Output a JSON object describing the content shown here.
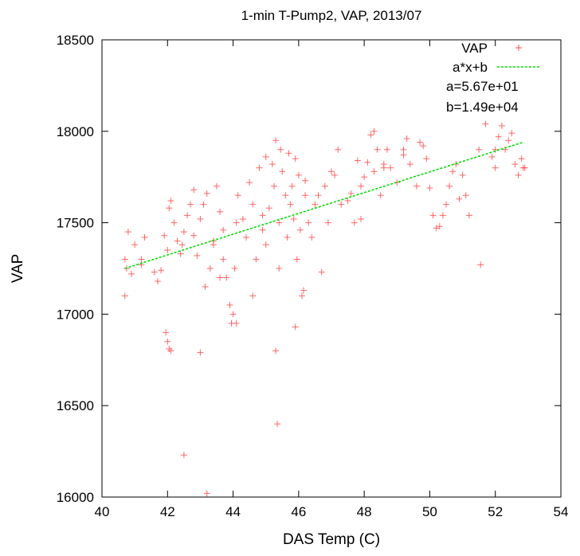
{
  "chart_data": {
    "type": "scatter",
    "title": "1-min T-Pump2, VAP, 2013/07",
    "xlabel": "DAS Temp (C)",
    "ylabel": "VAP",
    "xlim": [
      40,
      54
    ],
    "ylim": [
      16000,
      18500
    ],
    "x_ticks": [
      "40",
      "42",
      "44",
      "46",
      "48",
      "50",
      "52",
      "54"
    ],
    "y_ticks": [
      "16000",
      "16500",
      "17000",
      "17500",
      "18000",
      "18500"
    ],
    "grid": false,
    "legend_position": "top-right",
    "colors": {
      "scatter": "#ff4d4d",
      "fit": "#00dd00"
    },
    "series": [
      {
        "name": "VAP",
        "marker": "+",
        "x": [
          40.7,
          40.8,
          40.75,
          40.9,
          41.0,
          41.2,
          41.3,
          40.7,
          41.6,
          41.7,
          41.9,
          42.0,
          42.05,
          42.1,
          42.2,
          42.3,
          42.4,
          41.95,
          42.0,
          42.1,
          42.5,
          42.6,
          42.7,
          42.8,
          42.9,
          42.45,
          43.0,
          43.1,
          43.2,
          43.3,
          43.15,
          43.4,
          43.5,
          43.6,
          43.7,
          43.8,
          43.9,
          43.95,
          44.0,
          44.05,
          44.1,
          44.15,
          44.3,
          44.4,
          44.5,
          44.6,
          44.7,
          44.8,
          44.9,
          45.0,
          45.1,
          45.2,
          45.3,
          45.25,
          45.4,
          45.45,
          45.5,
          45.6,
          45.65,
          45.7,
          45.75,
          45.8,
          45.85,
          45.9,
          45.95,
          46.0,
          46.05,
          46.1,
          46.15,
          46.2,
          46.3,
          46.4,
          46.5,
          46.7,
          46.8,
          46.9,
          47.0,
          47.2,
          47.3,
          47.5,
          47.6,
          47.7,
          47.8,
          47.9,
          48.0,
          48.1,
          48.2,
          48.3,
          48.4,
          48.5,
          48.6,
          48.7,
          48.8,
          49.0,
          49.2,
          49.3,
          49.4,
          49.6,
          49.7,
          49.9,
          50.0,
          50.1,
          50.2,
          50.3,
          50.5,
          50.6,
          50.7,
          50.8,
          51.0,
          51.2,
          51.5,
          51.55,
          51.7,
          51.9,
          52.0,
          52.1,
          52.2,
          52.3,
          52.4,
          52.5,
          52.6,
          52.7,
          52.8,
          52.85,
          45.3,
          45.35,
          43.2,
          42.5,
          43.0,
          42.05,
          41.2,
          41.8,
          43.4,
          44.1,
          45.4,
          45.9,
          46.2,
          44.6,
          43.7,
          47.1,
          48.6,
          49.8,
          50.4,
          51.1,
          47.9,
          46.6,
          44.9,
          43.6,
          42.8,
          52.9,
          52.0,
          50.9,
          49.2,
          48.3,
          45.0
        ],
        "y": [
          17300,
          17450,
          17250,
          17220,
          17380,
          17300,
          17420,
          17100,
          17230,
          17180,
          17430,
          17350,
          17580,
          17620,
          17500,
          17400,
          17330,
          16900,
          16850,
          16800,
          17450,
          17540,
          17600,
          17680,
          17320,
          17380,
          17520,
          17600,
          17660,
          17250,
          17150,
          17400,
          17700,
          17560,
          17300,
          17200,
          17050,
          16950,
          17000,
          17250,
          17500,
          17650,
          17520,
          17420,
          17720,
          17600,
          17300,
          17800,
          17460,
          17860,
          17580,
          17820,
          17950,
          17700,
          17500,
          17900,
          17780,
          17650,
          17420,
          17880,
          17600,
          17700,
          17520,
          17850,
          17300,
          17760,
          17460,
          17100,
          17130,
          17650,
          17500,
          17420,
          17600,
          17230,
          17700,
          17500,
          17780,
          17900,
          17600,
          17620,
          17660,
          17500,
          17840,
          17700,
          17750,
          17830,
          17980,
          17780,
          17900,
          17650,
          17820,
          17900,
          17800,
          17720,
          17870,
          17960,
          17820,
          17700,
          17940,
          17850,
          17690,
          17540,
          17470,
          17480,
          17600,
          17700,
          17780,
          17820,
          17760,
          17540,
          17900,
          17270,
          18040,
          17860,
          17800,
          17970,
          18030,
          17900,
          17950,
          17990,
          17820,
          17760,
          17850,
          17800,
          16800,
          16400,
          16020,
          16230,
          16790,
          16810,
          17270,
          17240,
          17380,
          16950,
          17250,
          16930,
          17730,
          17100,
          17460,
          17760,
          17800,
          17920,
          17540,
          17650,
          17520,
          17650,
          17540,
          17200,
          17430,
          17800,
          17900,
          17630,
          17900,
          18000,
          17380
        ]
      },
      {
        "name": "a*x+b",
        "type": "line",
        "x": [
          40.7,
          52.85
        ],
        "y": [
          17250,
          17940
        ]
      }
    ],
    "annotations": [
      "a=5.67e+01",
      "b=1.49e+04"
    ]
  }
}
